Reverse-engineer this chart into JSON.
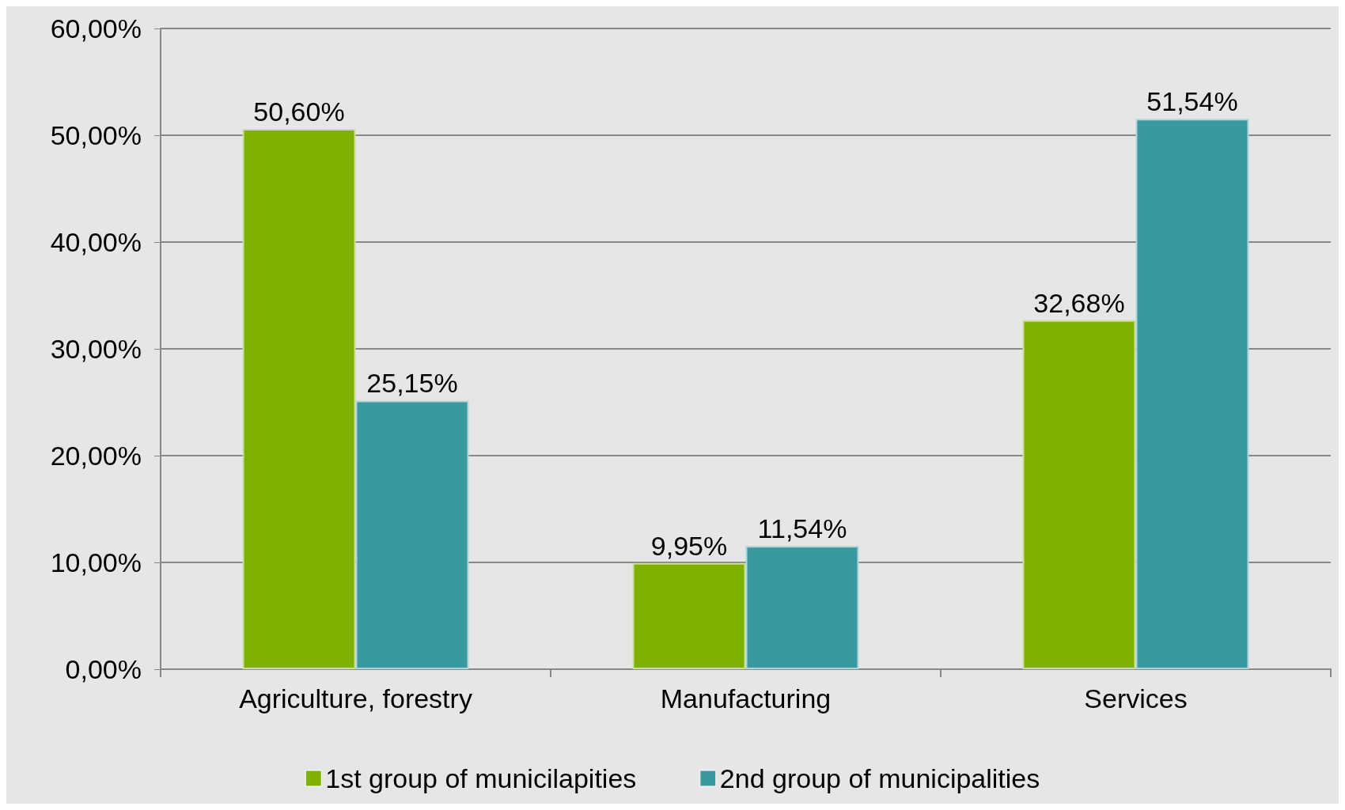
{
  "chart_data": {
    "type": "bar",
    "categories": [
      "Agriculture, forestry",
      "Manufacturing",
      "Services"
    ],
    "series": [
      {
        "name": "1st group of municilapities",
        "color": "#80b000",
        "values": [
          50.6,
          9.95,
          32.68
        ],
        "value_labels": [
          "50,60%",
          "9,95%",
          "32,68%"
        ]
      },
      {
        "name": "2nd group of municipalities",
        "color": "#3a98a0",
        "values": [
          25.15,
          11.54,
          51.54
        ],
        "value_labels": [
          "25,15%",
          "11,54%",
          "51,54%"
        ]
      }
    ],
    "ylim": [
      0,
      60
    ],
    "yticks": [
      {
        "value": 0,
        "label": "0,00%"
      },
      {
        "value": 10,
        "label": "10,00%"
      },
      {
        "value": 20,
        "label": "20,00%"
      },
      {
        "value": 30,
        "label": "30,00%"
      },
      {
        "value": 40,
        "label": "40,00%"
      },
      {
        "value": 50,
        "label": "50,00%"
      },
      {
        "value": 60,
        "label": "60,00%"
      }
    ],
    "grid": "y",
    "legend": "bottom"
  }
}
